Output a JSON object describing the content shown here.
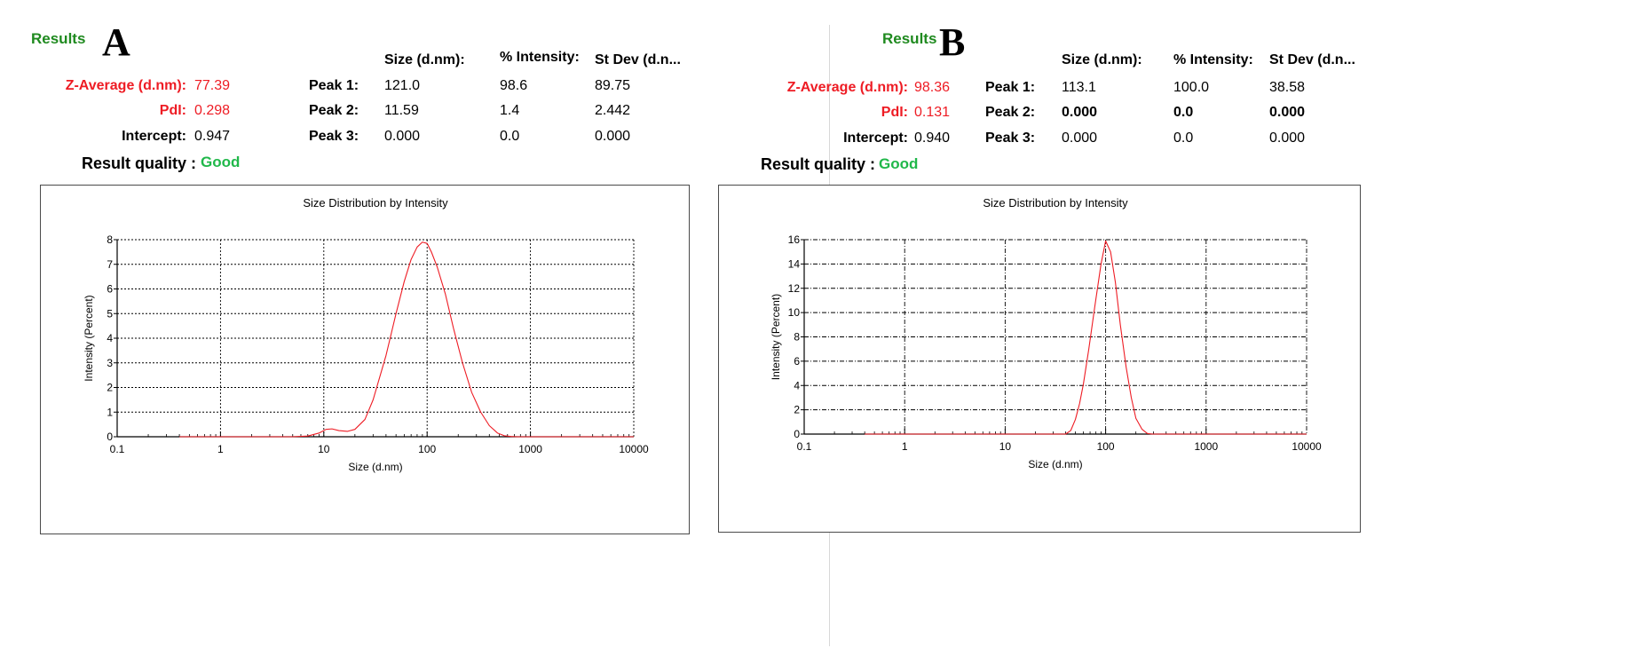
{
  "panels": [
    {
      "results_label": "Results",
      "letter": "A",
      "zavg_label": "Z-Average (d.nm):",
      "zavg_value": "77.39",
      "pdi_label": "PdI:",
      "pdi_value": "0.298",
      "intercept_label": "Intercept:",
      "intercept_value": "0.947",
      "quality_label": "Result quality :",
      "quality_value": "Good",
      "headers": [
        "Size (d.nm):",
        "% Intensity:",
        "St Dev (d.n..."
      ],
      "peaks": [
        {
          "label": "Peak 1:",
          "size": "121.0",
          "intensity": "98.6",
          "stdev": "89.75"
        },
        {
          "label": "Peak 2:",
          "size": "11.59",
          "intensity": "1.4",
          "stdev": "2.442"
        },
        {
          "label": "Peak 3:",
          "size": "0.000",
          "intensity": "0.0",
          "stdev": "0.000"
        }
      ]
    },
    {
      "results_label": "Results",
      "letter": "B",
      "zavg_label": "Z-Average (d.nm):",
      "zavg_value": "98.36",
      "pdi_label": "PdI:",
      "pdi_value": "0.131",
      "intercept_label": "Intercept:",
      "intercept_value": "0.940",
      "quality_label": "Result quality :",
      "quality_value": "Good",
      "headers": [
        "Size (d.nm):",
        "% Intensity:",
        "St Dev (d.n..."
      ],
      "peaks": [
        {
          "label": "Peak 1:",
          "size": "113.1",
          "intensity": "100.0",
          "stdev": "38.58"
        },
        {
          "label": "Peak 2:",
          "size": "0.000",
          "intensity": "0.0",
          "stdev": "0.000"
        },
        {
          "label": "Peak 3:",
          "size": "0.000",
          "intensity": "0.0",
          "stdev": "0.000"
        }
      ]
    }
  ],
  "chart_data": [
    {
      "type": "line",
      "title": "Size Distribution by Intensity",
      "xlabel": "Size (d.nm)",
      "ylabel": "Intensity (Percent)",
      "x_scale": "log",
      "xlim": [
        0.1,
        10000
      ],
      "ylim": [
        0,
        8
      ],
      "x_ticks": [
        0.1,
        1,
        10,
        100,
        1000,
        10000
      ],
      "x_tick_labels": [
        "0.1",
        "1",
        "10",
        "100",
        "1000",
        "10000"
      ],
      "y_ticks": [
        0,
        1,
        2,
        3,
        4,
        5,
        6,
        7,
        8
      ],
      "y_tick_labels": [
        "0",
        "1",
        "2",
        "3",
        "4",
        "5",
        "6",
        "7",
        "8"
      ],
      "grid": "dotted",
      "line_color": "#ee1c24",
      "series": [
        {
          "x": [
            0.4,
            5,
            7,
            9,
            10.5,
            12,
            14,
            17,
            20,
            25,
            30,
            40,
            50,
            60,
            70,
            80,
            90,
            100,
            110,
            125,
            150,
            180,
            220,
            270,
            330,
            400,
            480,
            560,
            650,
            750,
            1000,
            10000
          ],
          "y": [
            0,
            0,
            0.03,
            0.15,
            0.3,
            0.32,
            0.25,
            0.22,
            0.3,
            0.7,
            1.5,
            3.3,
            5.0,
            6.3,
            7.2,
            7.7,
            7.9,
            7.85,
            7.5,
            6.9,
            5.8,
            4.4,
            3.0,
            1.8,
            1.0,
            0.45,
            0.15,
            0.04,
            0.01,
            0,
            0,
            0
          ]
        }
      ]
    },
    {
      "type": "line",
      "title": "Size Distribution by Intensity",
      "xlabel": "Size (d.nm)",
      "ylabel": "Intensity (Percent)",
      "x_scale": "log",
      "xlim": [
        0.1,
        10000
      ],
      "ylim": [
        0,
        16
      ],
      "x_ticks": [
        0.1,
        1,
        10,
        100,
        1000,
        10000
      ],
      "x_tick_labels": [
        "0.1",
        "1",
        "10",
        "100",
        "1000",
        "10000"
      ],
      "y_ticks": [
        0,
        2,
        4,
        6,
        8,
        10,
        12,
        14,
        16
      ],
      "y_tick_labels": [
        "0",
        "2",
        "4",
        "6",
        "8",
        "10",
        "12",
        "14",
        "16"
      ],
      "grid": "dashed",
      "line_color": "#ee1c24",
      "series": [
        {
          "x": [
            0.4,
            40,
            45,
            50,
            55,
            60,
            68,
            78,
            90,
            100,
            112,
            125,
            140,
            160,
            180,
            200,
            230,
            260,
            290,
            10000
          ],
          "y": [
            0,
            0,
            0.3,
            1.2,
            2.5,
            4.1,
            7.0,
            10.5,
            14.0,
            15.9,
            15.0,
            12.5,
            9.0,
            5.5,
            3.0,
            1.3,
            0.4,
            0.05,
            0,
            0
          ]
        }
      ]
    }
  ]
}
